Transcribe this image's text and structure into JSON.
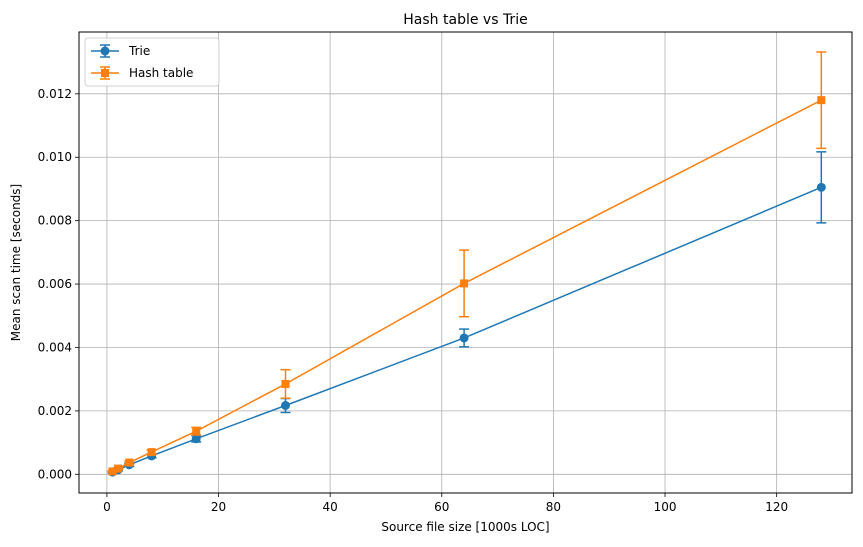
{
  "chart_data": {
    "type": "line",
    "title": "Hash table vs Trie",
    "xlabel": "Source file size [1000s LOC]",
    "ylabel": "Mean scan time [seconds]",
    "xlim": [
      -5,
      133.5
    ],
    "ylim": [
      -0.00059,
      0.01395
    ],
    "xticks": [
      0,
      20,
      40,
      60,
      80,
      100,
      120
    ],
    "xtick_labels": [
      "0",
      "20",
      "40",
      "60",
      "80",
      "100",
      "120"
    ],
    "yticks": [
      0.0,
      0.002,
      0.004,
      0.006,
      0.008,
      0.01,
      0.012
    ],
    "ytick_labels": [
      "0.000",
      "0.002",
      "0.004",
      "0.006",
      "0.008",
      "0.010",
      "0.012"
    ],
    "grid": true,
    "legend_position": "top-left",
    "x": [
      1,
      2,
      4,
      8,
      16,
      32,
      64,
      128
    ],
    "series": [
      {
        "name": "Trie",
        "color": "#1f77b4",
        "marker": "circle",
        "values": [
          7e-05,
          0.00014,
          0.0003,
          0.00058,
          0.00112,
          0.00217,
          0.0043,
          0.00905
        ],
        "errors": [
          2e-05,
          3e-05,
          5e-05,
          6e-05,
          0.0001,
          0.00022,
          0.00028,
          0.00112
        ]
      },
      {
        "name": "Hash table",
        "color": "#ff7f0e",
        "marker": "square",
        "values": [
          9e-05,
          0.00018,
          0.00037,
          0.0007,
          0.00136,
          0.00285,
          0.00602,
          0.0118
        ],
        "errors": [
          2e-05,
          3e-05,
          5e-05,
          7e-05,
          0.00012,
          0.00045,
          0.00105,
          0.00152
        ]
      }
    ]
  }
}
